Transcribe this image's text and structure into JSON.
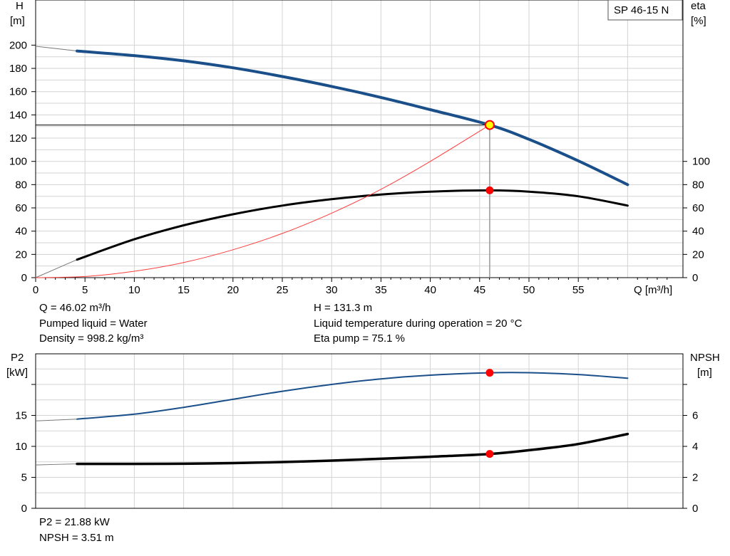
{
  "model_label": "SP 46-15 N",
  "info_top": {
    "q": "Q = 46.02 m³/h",
    "liquid": "Pumped liquid = Water",
    "density": "Density = 998.2 kg/m³",
    "h": "H = 131.3 m",
    "temp": "Liquid temperature during operation = 20 °C",
    "eta": "Eta pump = 75.1 %"
  },
  "info_bottom": {
    "p2": "P2 = 21.88 kW",
    "npsh": "NPSH = 3.51 m"
  },
  "colors": {
    "head_curve": "#1a4f8a",
    "eta_curve": "#000000",
    "system_curve": "#ff3b3b",
    "duty_point": "#ff0000",
    "duty_point_fill_top": "#ffff00",
    "power_curve": "#1a4f8a",
    "npsh_curve": "#000000",
    "grid": "#d3d3d3"
  },
  "chart_data": [
    {
      "type": "line",
      "x_axis": {
        "label": "Q [m³/h]",
        "range": [
          0,
          65
        ],
        "ticks": [
          0,
          5,
          10,
          15,
          20,
          25,
          30,
          35,
          40,
          45,
          50,
          55
        ]
      },
      "y_left": {
        "label_line1": "H",
        "label_line2": "[m]",
        "range": [
          0,
          210
        ],
        "ticks": [
          0,
          20,
          40,
          60,
          80,
          100,
          120,
          140,
          160,
          180,
          200
        ]
      },
      "y_right": {
        "label_line1": "eta",
        "label_line2": "[%]",
        "range": [
          0,
          210
        ],
        "ticks": [
          0,
          20,
          40,
          60,
          80,
          100
        ]
      },
      "grid": true,
      "series": [
        {
          "key": "head",
          "axis": "left",
          "points": [
            [
              4.2,
              195
            ],
            [
              10,
              191
            ],
            [
              15,
              186.5
            ],
            [
              20,
              180.5
            ],
            [
              25,
              173
            ],
            [
              30,
              164.5
            ],
            [
              35,
              155
            ],
            [
              40,
              144.5
            ],
            [
              46.02,
              131.3
            ],
            [
              50,
              119
            ],
            [
              55,
              100.5
            ],
            [
              60,
              80
            ]
          ],
          "extrapolated": [
            [
              0,
              199
            ],
            [
              4.2,
              195
            ]
          ]
        },
        {
          "key": "eta",
          "axis": "right",
          "points": [
            [
              4.2,
              15.5
            ],
            [
              10,
              33
            ],
            [
              15,
              45
            ],
            [
              20,
              54.5
            ],
            [
              25,
              62
            ],
            [
              30,
              67.5
            ],
            [
              35,
              71.5
            ],
            [
              40,
              74
            ],
            [
              46.02,
              75.1
            ],
            [
              50,
              74
            ],
            [
              55,
              70
            ],
            [
              60,
              62
            ]
          ],
          "extrapolated": [
            [
              0,
              0
            ],
            [
              4.2,
              15.5
            ]
          ]
        },
        {
          "key": "system",
          "axis": "left",
          "points": [
            [
              0,
              0
            ],
            [
              5,
              1
            ],
            [
              10,
              5.5
            ],
            [
              15,
              13
            ],
            [
              20,
              24
            ],
            [
              25,
              38
            ],
            [
              30,
              55.5
            ],
            [
              35,
              76
            ],
            [
              40,
              100
            ],
            [
              46.02,
              131.3
            ]
          ]
        }
      ],
      "duty_point": {
        "q": 46.02,
        "h": 131.3,
        "eta": 75.1
      }
    },
    {
      "type": "line",
      "x_axis": {
        "range": [
          0,
          65
        ]
      },
      "y_left": {
        "label_line1": "P2",
        "label_line2": "[kW]",
        "range": [
          0,
          25
        ],
        "ticks": [
          0,
          5,
          10,
          15
        ]
      },
      "y_right": {
        "label_line1": "NPSH",
        "label_line2": "[m]",
        "range": [
          0,
          10
        ],
        "ticks": [
          0,
          2,
          4,
          6
        ]
      },
      "grid": true,
      "series": [
        {
          "key": "p2",
          "axis": "left",
          "points": [
            [
              4.2,
              14.4
            ],
            [
              10,
              15.2
            ],
            [
              15,
              16.3
            ],
            [
              20,
              17.6
            ],
            [
              25,
              18.9
            ],
            [
              30,
              20
            ],
            [
              35,
              20.9
            ],
            [
              40,
              21.5
            ],
            [
              46.02,
              21.88
            ],
            [
              50,
              21.9
            ],
            [
              55,
              21.6
            ],
            [
              60,
              21
            ]
          ],
          "extrapolated": [
            [
              0,
              14.1
            ],
            [
              4.2,
              14.4
            ]
          ]
        },
        {
          "key": "npsh",
          "axis": "right",
          "points": [
            [
              4.2,
              2.87
            ],
            [
              10,
              2.87
            ],
            [
              15,
              2.88
            ],
            [
              20,
              2.92
            ],
            [
              25,
              2.99
            ],
            [
              30,
              3.08
            ],
            [
              35,
              3.2
            ],
            [
              40,
              3.33
            ],
            [
              46.02,
              3.51
            ],
            [
              50,
              3.75
            ],
            [
              55,
              4.15
            ],
            [
              60,
              4.8
            ]
          ],
          "extrapolated": [
            [
              0,
              2.8
            ],
            [
              4.2,
              2.87
            ]
          ]
        }
      ],
      "duty_point": {
        "q": 46.02,
        "p2": 21.88,
        "npsh": 3.51
      }
    }
  ]
}
